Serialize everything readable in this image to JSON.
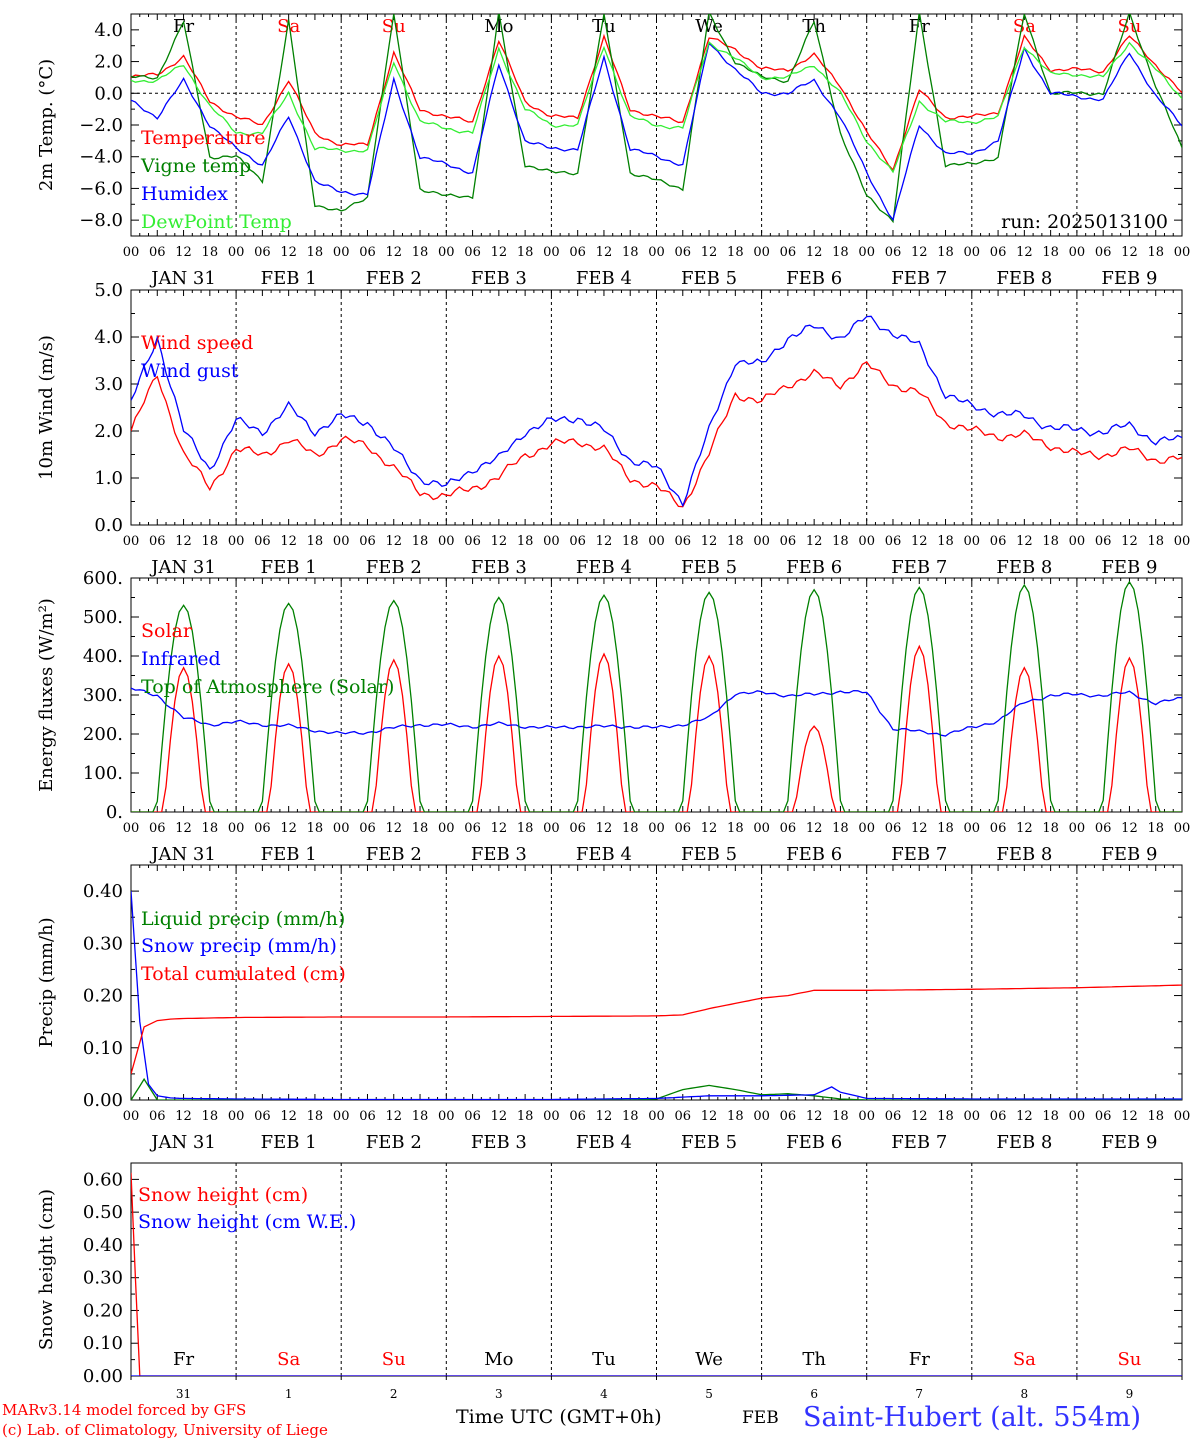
{
  "footer": {
    "credit1": "MARv3.14 model forced by GFS",
    "credit2": "(c) Lab. of Climatology, University of Liege",
    "xlabel": "Time UTC (GMT+0h)",
    "month": "FEB",
    "station": "Saint-Hubert (alt. 554m)"
  },
  "axis": {
    "hour_ticks": [
      "00",
      "06",
      "12",
      "18"
    ],
    "day_labels": [
      "JAN 31",
      "FEB  1",
      "FEB  2",
      "FEB  3",
      "FEB  4",
      "FEB  5",
      "FEB  6",
      "FEB  7",
      "FEB  8",
      "FEB  9"
    ],
    "weekdays": [
      "Fr",
      "Sa",
      "Su",
      "Mo",
      "Tu",
      "We",
      "Th",
      "Fr",
      "Sa",
      "Su"
    ],
    "weekday_colors": [
      "#000000",
      "#ff0000",
      "#ff0000",
      "#000000",
      "#000000",
      "#000000",
      "#000000",
      "#000000",
      "#ff0000",
      "#ff0000"
    ],
    "bottom_day_numbers": [
      "31",
      "1",
      "2",
      "3",
      "4",
      "5",
      "6",
      "7",
      "8",
      "9"
    ],
    "days": 10
  },
  "colors": {
    "red": "#ff0000",
    "green": "#008000",
    "blue": "#0000ff",
    "lightgreen": "#33ee33"
  },
  "chart_data": [
    {
      "type": "line",
      "id": "temp",
      "ylabel": "2m Temp. (°C)",
      "ylim": [
        -9,
        5
      ],
      "yticks": [
        -8,
        -6,
        -4,
        -2,
        0,
        2,
        4
      ],
      "ytick_labels": [
        "−8.0",
        "−6.0",
        "−4.0",
        "−2.0",
        "0.0",
        "2.0",
        "4.0"
      ],
      "zero_line": true,
      "annotation": "run: 2025013100",
      "x_hours": [
        0,
        6,
        12,
        18,
        24,
        30,
        36,
        42,
        48,
        54,
        60,
        66,
        72,
        78,
        84,
        90,
        96,
        102,
        108,
        114,
        120,
        126,
        132,
        138,
        144,
        150,
        156,
        162,
        168,
        174,
        180,
        186,
        192,
        198,
        204,
        210,
        216,
        222,
        228,
        234,
        240
      ],
      "series": [
        {
          "name": "Temperature",
          "color": "#ff0000",
          "values": [
            1.0,
            1.2,
            2.3,
            -0.5,
            -1.5,
            -2.0,
            0.8,
            -2.5,
            -3.3,
            -3.2,
            2.5,
            -1.0,
            -1.5,
            -1.8,
            3.3,
            -0.5,
            -1.5,
            -1.5,
            3.5,
            -1.0,
            -1.5,
            -1.8,
            3.5,
            2.8,
            1.5,
            1.5,
            2.4,
            0.5,
            -2.5,
            -4.8,
            0.2,
            -1.5,
            -1.5,
            -1.2,
            3.5,
            1.5,
            1.5,
            1.4,
            3.6,
            1.8,
            0.0
          ]
        },
        {
          "name": "Vigne temp",
          "color": "#008000",
          "values": [
            1.0,
            1.0,
            4.5,
            -4.0,
            -4.0,
            -5.5,
            4.5,
            -7.0,
            -7.5,
            -6.5,
            5.0,
            -6.0,
            -6.5,
            -6.5,
            5.0,
            -4.5,
            -5.0,
            -5.0,
            5.0,
            -5.0,
            -5.5,
            -6.0,
            5.0,
            2.0,
            1.0,
            0.8,
            4.5,
            -2.5,
            -6.5,
            -8.0,
            5.0,
            -4.5,
            -4.5,
            -4.0,
            5.0,
            0.0,
            0.0,
            0.0,
            5.0,
            0.5,
            -3.5
          ]
        },
        {
          "name": "Humidex",
          "color": "#0000ff",
          "values": [
            -0.5,
            -1.5,
            0.8,
            -2.0,
            -3.5,
            -4.5,
            -1.5,
            -5.5,
            -6.3,
            -6.3,
            0.8,
            -4.0,
            -4.5,
            -5.0,
            1.8,
            -3.0,
            -3.5,
            -3.5,
            2.2,
            -3.5,
            -4.0,
            -4.5,
            3.2,
            1.5,
            0.0,
            0.0,
            0.8,
            -1.5,
            -5.0,
            -8.0,
            -2.0,
            -3.8,
            -3.8,
            -3.0,
            2.8,
            0.0,
            -0.2,
            -0.4,
            2.6,
            -0.2,
            -2.0
          ]
        },
        {
          "name": "DewPoint Temp",
          "color": "#33ee33",
          "values": [
            0.8,
            0.8,
            1.8,
            -0.8,
            -2.5,
            -2.5,
            0.0,
            -3.5,
            -3.6,
            -3.6,
            2.0,
            -1.8,
            -2.2,
            -2.5,
            2.8,
            -1.0,
            -2.0,
            -2.0,
            3.0,
            -1.5,
            -2.0,
            -2.2,
            3.2,
            2.2,
            1.0,
            1.0,
            1.8,
            0.0,
            -3.0,
            -5.0,
            -0.5,
            -1.8,
            -1.8,
            -1.5,
            3.0,
            1.2,
            1.2,
            1.0,
            3.2,
            1.5,
            -0.3
          ]
        }
      ]
    },
    {
      "type": "line",
      "id": "wind",
      "ylabel": "10m Wind (m/s)",
      "ylim": [
        0,
        5
      ],
      "yticks": [
        0,
        1,
        2,
        3,
        4,
        5
      ],
      "ytick_labels": [
        "0.0",
        "1.0",
        "2.0",
        "3.0",
        "4.0",
        "5.0"
      ],
      "x_hours": [
        0,
        6,
        12,
        18,
        24,
        30,
        36,
        42,
        48,
        54,
        60,
        66,
        72,
        78,
        84,
        90,
        96,
        102,
        108,
        114,
        120,
        126,
        132,
        138,
        144,
        150,
        156,
        162,
        168,
        174,
        180,
        186,
        192,
        198,
        204,
        210,
        216,
        222,
        228,
        234,
        240
      ],
      "series": [
        {
          "name": "Wind speed",
          "color": "#ff0000",
          "values": [
            2.0,
            3.2,
            1.5,
            0.8,
            1.6,
            1.5,
            1.8,
            1.5,
            1.8,
            1.7,
            1.2,
            0.7,
            0.6,
            0.8,
            1.0,
            1.5,
            1.7,
            1.8,
            1.6,
            1.0,
            0.8,
            0.4,
            1.5,
            2.8,
            2.6,
            3.0,
            3.2,
            3.0,
            3.4,
            3.0,
            2.8,
            2.2,
            2.0,
            1.9,
            1.9,
            1.7,
            1.5,
            1.5,
            1.6,
            1.4,
            1.4
          ]
        },
        {
          "name": "Wind gust",
          "color": "#0000ff",
          "values": [
            2.6,
            4.0,
            2.0,
            1.2,
            2.2,
            2.0,
            2.5,
            2.0,
            2.3,
            2.2,
            1.6,
            1.0,
            0.8,
            1.2,
            1.4,
            2.0,
            2.2,
            2.3,
            2.0,
            1.4,
            1.2,
            0.5,
            2.0,
            3.5,
            3.4,
            4.0,
            4.2,
            4.0,
            4.4,
            4.1,
            3.8,
            2.8,
            2.5,
            2.4,
            2.3,
            2.1,
            2.0,
            2.0,
            2.1,
            1.8,
            1.8
          ]
        }
      ]
    },
    {
      "type": "line",
      "id": "flux",
      "ylabel": "Energy fluxes (W/m²)",
      "ylim": [
        0,
        600
      ],
      "yticks": [
        0,
        100,
        200,
        300,
        400,
        500,
        600
      ],
      "ytick_labels": [
        "0.",
        "100.",
        "200.",
        "300.",
        "400.",
        "500.",
        "600."
      ],
      "diurnal": {
        "solar_peaks": [
          370,
          380,
          390,
          400,
          405,
          400,
          220,
          425,
          370,
          395
        ],
        "toa_peaks": [
          530,
          535,
          542,
          550,
          556,
          563,
          570,
          576,
          582,
          590
        ]
      },
      "series": [
        {
          "name": "Solar",
          "color": "#ff0000"
        },
        {
          "name": "Infrared",
          "color": "#0000ff",
          "x_hours": [
            0,
            6,
            12,
            18,
            24,
            30,
            36,
            42,
            48,
            54,
            60,
            66,
            72,
            78,
            84,
            90,
            96,
            102,
            108,
            114,
            120,
            126,
            132,
            138,
            144,
            150,
            156,
            162,
            168,
            174,
            180,
            186,
            192,
            198,
            204,
            210,
            216,
            222,
            228,
            234,
            240
          ],
          "values": [
            315,
            300,
            240,
            225,
            230,
            225,
            220,
            210,
            200,
            205,
            215,
            225,
            222,
            220,
            225,
            220,
            215,
            220,
            218,
            220,
            215,
            225,
            240,
            305,
            305,
            300,
            300,
            310,
            305,
            215,
            205,
            200,
            215,
            235,
            280,
            300,
            300,
            300,
            305,
            280,
            290
          ]
        },
        {
          "name": "Top of Atmosphere (Solar)",
          "color": "#008000"
        }
      ]
    },
    {
      "type": "line",
      "id": "precip",
      "ylabel": "Precip (mm/h)",
      "ylim": [
        0,
        0.45
      ],
      "yticks": [
        0,
        0.1,
        0.2,
        0.3,
        0.4
      ],
      "ytick_labels": [
        "0.00",
        "0.10",
        "0.20",
        "0.30",
        "0.40"
      ],
      "series": [
        {
          "name": "Liquid precip (mm/h)",
          "color": "#008000",
          "x_hours": [
            0,
            3,
            6,
            9,
            12,
            24,
            48,
            72,
            96,
            114,
            120,
            126,
            132,
            138,
            144,
            150,
            156,
            162,
            168,
            192,
            216,
            240
          ],
          "values": [
            0.0,
            0.04,
            0.0,
            0.0,
            0.0,
            0.0,
            0.0,
            0.0,
            0.0,
            0.0,
            0.002,
            0.02,
            0.028,
            0.02,
            0.01,
            0.012,
            0.008,
            0.002,
            0.0,
            0.0,
            0.0,
            0.0
          ]
        },
        {
          "name": "Snow precip (mm/h)",
          "color": "#0000ff",
          "x_hours": [
            0,
            2,
            4,
            6,
            9,
            12,
            24,
            48,
            72,
            96,
            120,
            132,
            144,
            156,
            160,
            162,
            168,
            192,
            216,
            240
          ],
          "values": [
            0.4,
            0.15,
            0.03,
            0.008,
            0.004,
            0.003,
            0.002,
            0.001,
            0.001,
            0.001,
            0.003,
            0.008,
            0.008,
            0.01,
            0.025,
            0.015,
            0.003,
            0.002,
            0.002,
            0.002
          ]
        },
        {
          "name": "Total cumulated (cm)",
          "color": "#ff0000",
          "x_hours": [
            0,
            3,
            6,
            9,
            12,
            24,
            48,
            72,
            96,
            120,
            126,
            132,
            138,
            144,
            150,
            156,
            162,
            168,
            192,
            216,
            240
          ],
          "values": [
            0.05,
            0.14,
            0.152,
            0.155,
            0.156,
            0.158,
            0.159,
            0.159,
            0.16,
            0.161,
            0.163,
            0.175,
            0.185,
            0.195,
            0.2,
            0.21,
            0.21,
            0.21,
            0.212,
            0.215,
            0.22
          ]
        }
      ]
    },
    {
      "type": "line",
      "id": "snow",
      "ylabel": "Snow height (cm)",
      "ylim": [
        0,
        0.65
      ],
      "yticks": [
        0,
        0.1,
        0.2,
        0.3,
        0.4,
        0.5,
        0.6
      ],
      "ytick_labels": [
        "0.00",
        "0.10",
        "0.20",
        "0.30",
        "0.40",
        "0.50",
        "0.60"
      ],
      "series": [
        {
          "name": "Snow height (cm)",
          "color": "#ff0000",
          "x_hours": [
            0,
            1,
            2,
            240
          ],
          "values": [
            0.62,
            0.3,
            0.0,
            0.0
          ]
        },
        {
          "name": "Snow height (cm W.E.)",
          "color": "#0000ff",
          "x_hours": [
            0,
            240
          ],
          "values": [
            0.0,
            0.0
          ]
        }
      ]
    }
  ]
}
